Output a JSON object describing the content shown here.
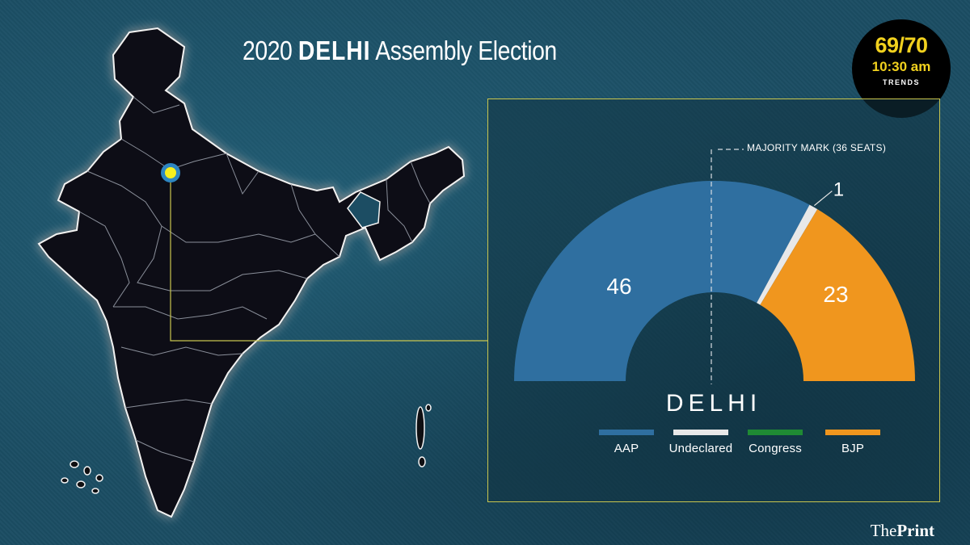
{
  "title": {
    "year": "2020",
    "state": "DELHI",
    "rest": "Assembly Election"
  },
  "badge": {
    "count": "69/70",
    "time": "10:30 am",
    "sub": "TRENDS"
  },
  "majority_label": "MAJORITY MARK (36 SEATS)",
  "state_name": "DELHI",
  "brand": {
    "part1": "The",
    "part2": "Print"
  },
  "colors": {
    "AAP": "#2f6fa0",
    "Undeclared": "#e8e8e8",
    "Congress": "#1f8a34",
    "BJP": "#f0961e",
    "accent": "#f1d11e",
    "frame": "#c9c64f"
  },
  "chart_data": {
    "type": "pie",
    "subtype": "semicircle",
    "total_seats": 70,
    "majority": 36,
    "categories": [
      "AAP",
      "Undeclared",
      "Congress",
      "BJP"
    ],
    "values": [
      46,
      1,
      0,
      23
    ],
    "data_labels": [
      "46",
      "1",
      "",
      "23"
    ],
    "legend": [
      "AAP",
      "Undeclared",
      "Congress",
      "BJP"
    ]
  }
}
